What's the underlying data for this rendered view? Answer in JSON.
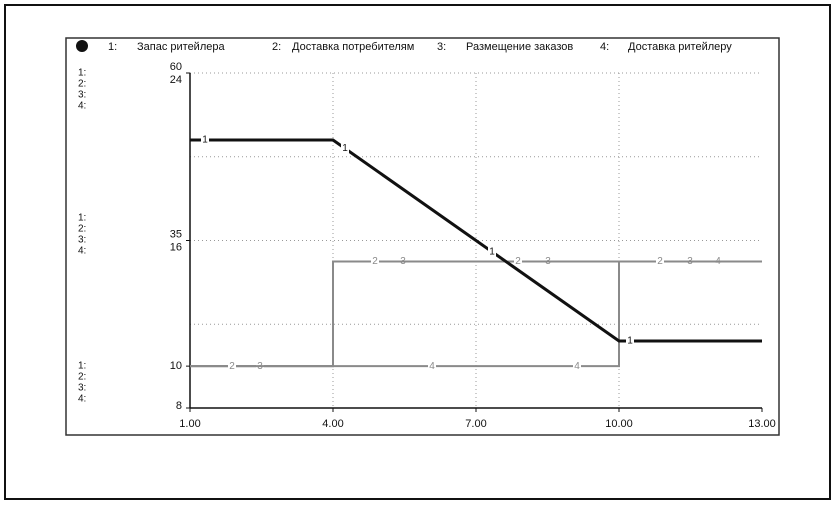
{
  "chart_data": {
    "type": "line",
    "xlim": [
      1,
      13
    ],
    "xticks": [
      {
        "value": 1,
        "label": "1.00"
      },
      {
        "value": 4,
        "label": "4.00"
      },
      {
        "value": 7,
        "label": "7.00"
      },
      {
        "value": 10,
        "label": "10.00"
      },
      {
        "value": 13,
        "label": "13.00"
      }
    ],
    "ylim": [
      10,
      60
    ],
    "yticks": [
      60,
      35
    ],
    "y2lim": [
      8,
      24
    ],
    "y2ticks": [
      24,
      16,
      10,
      8
    ],
    "grid": true,
    "legend_numbers": [
      "1:",
      "2:",
      "3:",
      "4:"
    ],
    "series": [
      {
        "name": "Запас ритейлера",
        "marker": "1",
        "color": "#111111",
        "width": 3,
        "x": [
          1,
          4,
          10,
          13
        ],
        "values": [
          50,
          50,
          20,
          20
        ]
      },
      {
        "name": "Доставка потребителям",
        "marker": "2",
        "color": "#8a8a8a",
        "width": 2,
        "axis": "y2",
        "x": [
          1,
          4,
          4,
          13
        ],
        "values": [
          10,
          10,
          15,
          15
        ]
      },
      {
        "name": "Размещение заказов",
        "marker": "3",
        "color": "#8a8a8a",
        "width": 2,
        "axis": "y2",
        "x": [
          1,
          4,
          4,
          13
        ],
        "values": [
          10,
          10,
          15,
          15
        ]
      },
      {
        "name": "Доставка ритейлеру",
        "marker": "4",
        "color": "#8a8a8a",
        "width": 2,
        "axis": "y2",
        "x": [
          1,
          10,
          10,
          13
        ],
        "values": [
          10,
          10,
          15,
          15
        ]
      }
    ]
  }
}
